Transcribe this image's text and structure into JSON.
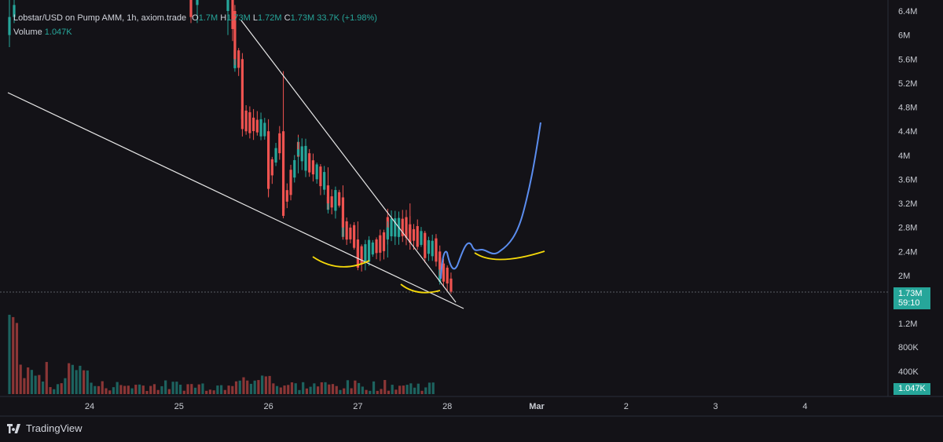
{
  "header": {
    "symbol_line": "Lobstar/USD on Pump AMM, 1h, axiom.trade",
    "open_key": "O",
    "open": "1.7M",
    "high_key": "H",
    "high": "1.73M",
    "low_key": "L",
    "low": "1.72M",
    "close_key": "C",
    "close": "1.73M",
    "change": "33.7K (+1.98%)",
    "volume_key": "Volume",
    "volume": "1.047K"
  },
  "price_badge": {
    "price": "1.73M",
    "countdown": "59:10"
  },
  "volume_badge": "1.047K",
  "footer": {
    "brand": "TradingView"
  },
  "colors": {
    "background": "#131217",
    "up": "#26a69a",
    "down": "#ef5350",
    "trendline": "#e6e6e6",
    "forecast": "#5b8def",
    "highlight": "#f5d90a"
  },
  "chart_data": {
    "type": "candlestick",
    "title": "",
    "y_axis_ticks": [
      "6.4M",
      "6M",
      "5.6M",
      "5.2M",
      "4.8M",
      "4.4M",
      "4M",
      "3.6M",
      "3.2M",
      "2.8M",
      "2.4M",
      "2M",
      "1.2M",
      "800K",
      "400K"
    ],
    "x_axis_ticks": [
      "24",
      "25",
      "26",
      "27",
      "28",
      "Mar",
      "2",
      "3",
      "4"
    ],
    "ylim": [
      0,
      6.6
    ],
    "y_unit": "M",
    "current_price": 1.73,
    "candles_sample": [
      {
        "t": "25 15:00",
        "o": 6.4,
        "h": 6.5,
        "l": 5.5,
        "c": 5.6
      },
      {
        "t": "25 17:00",
        "o": 5.6,
        "h": 5.7,
        "l": 4.5,
        "c": 4.6
      },
      {
        "t": "26 00:00",
        "o": 4.4,
        "h": 4.6,
        "l": 3.3,
        "c": 3.6
      },
      {
        "t": "26 04:00",
        "o": 4.4,
        "h": 5.4,
        "l": 3.0,
        "c": 3.1
      },
      {
        "t": "26 08:00",
        "o": 4.0,
        "h": 4.3,
        "l": 3.7,
        "c": 4.1
      },
      {
        "t": "26 16:00",
        "o": 3.5,
        "h": 3.8,
        "l": 3.1,
        "c": 3.2
      },
      {
        "t": "26 20:00",
        "o": 3.3,
        "h": 3.5,
        "l": 2.6,
        "c": 2.8
      },
      {
        "t": "27 00:00",
        "o": 2.6,
        "h": 2.9,
        "l": 2.2,
        "c": 2.3
      },
      {
        "t": "27 08:00",
        "o": 2.6,
        "h": 2.9,
        "l": 2.3,
        "c": 2.8
      },
      {
        "t": "27 14:00",
        "o": 2.8,
        "h": 3.2,
        "l": 2.6,
        "c": 2.7
      },
      {
        "t": "27 18:00",
        "o": 2.6,
        "h": 2.7,
        "l": 2.4,
        "c": 2.5
      },
      {
        "t": "27 22:00",
        "o": 2.4,
        "h": 2.5,
        "l": 2.0,
        "c": 2.1
      },
      {
        "t": "28 01:00",
        "o": 1.95,
        "h": 2.05,
        "l": 1.7,
        "c": 1.73
      }
    ]
  }
}
